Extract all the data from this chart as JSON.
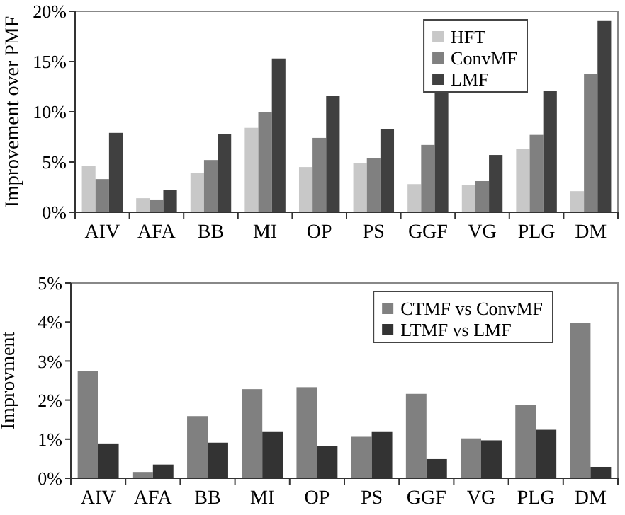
{
  "chart_data": [
    {
      "type": "bar",
      "ylabel": "Improvement over PMF",
      "categories": [
        "AIV",
        "AFA",
        "BB",
        "MI",
        "OP",
        "PS",
        "GGF",
        "VG",
        "PLG",
        "DM"
      ],
      "ylim": [
        0,
        20
      ],
      "yticks": [
        {
          "value": 0,
          "label": "0%"
        },
        {
          "value": 5,
          "label": "5%"
        },
        {
          "value": 10,
          "label": "10%"
        },
        {
          "value": 15,
          "label": "15%"
        },
        {
          "value": 20,
          "label": "20%"
        }
      ],
      "legend": "top right",
      "grid": false,
      "series": [
        {
          "name": "HFT",
          "color": "#c8c8c8",
          "values": [
            4.6,
            1.4,
            3.9,
            8.4,
            4.5,
            4.9,
            2.8,
            2.7,
            6.3,
            2.1
          ]
        },
        {
          "name": "ConvMF",
          "color": "#808080",
          "values": [
            3.3,
            1.2,
            5.2,
            10.0,
            7.4,
            5.4,
            6.7,
            3.1,
            7.7,
            13.8
          ]
        },
        {
          "name": "LMF",
          "color": "#404040",
          "values": [
            7.9,
            2.2,
            7.8,
            15.3,
            11.6,
            8.3,
            12.0,
            5.7,
            12.1,
            19.1
          ]
        }
      ]
    },
    {
      "type": "bar",
      "ylabel": "Improvment",
      "categories": [
        "AIV",
        "AFA",
        "BB",
        "MI",
        "OP",
        "PS",
        "GGF",
        "VG",
        "PLG",
        "DM"
      ],
      "ylim": [
        0,
        5
      ],
      "yticks": [
        {
          "value": 0,
          "label": "0%"
        },
        {
          "value": 1,
          "label": "1%"
        },
        {
          "value": 2,
          "label": "2%"
        },
        {
          "value": 3,
          "label": "3%"
        },
        {
          "value": 4,
          "label": "4%"
        },
        {
          "value": 5,
          "label": "5%"
        }
      ],
      "legend": "top right",
      "grid": false,
      "series": [
        {
          "name": "CTMF vs ConvMF",
          "color": "#808080",
          "values": [
            2.74,
            0.16,
            1.59,
            2.28,
            2.33,
            1.06,
            2.16,
            1.02,
            1.87,
            3.98
          ]
        },
        {
          "name": "LTMF vs LMF",
          "color": "#333333",
          "values": [
            0.89,
            0.35,
            0.91,
            1.2,
            0.83,
            1.2,
            0.49,
            0.97,
            1.24,
            0.29
          ]
        }
      ]
    }
  ]
}
